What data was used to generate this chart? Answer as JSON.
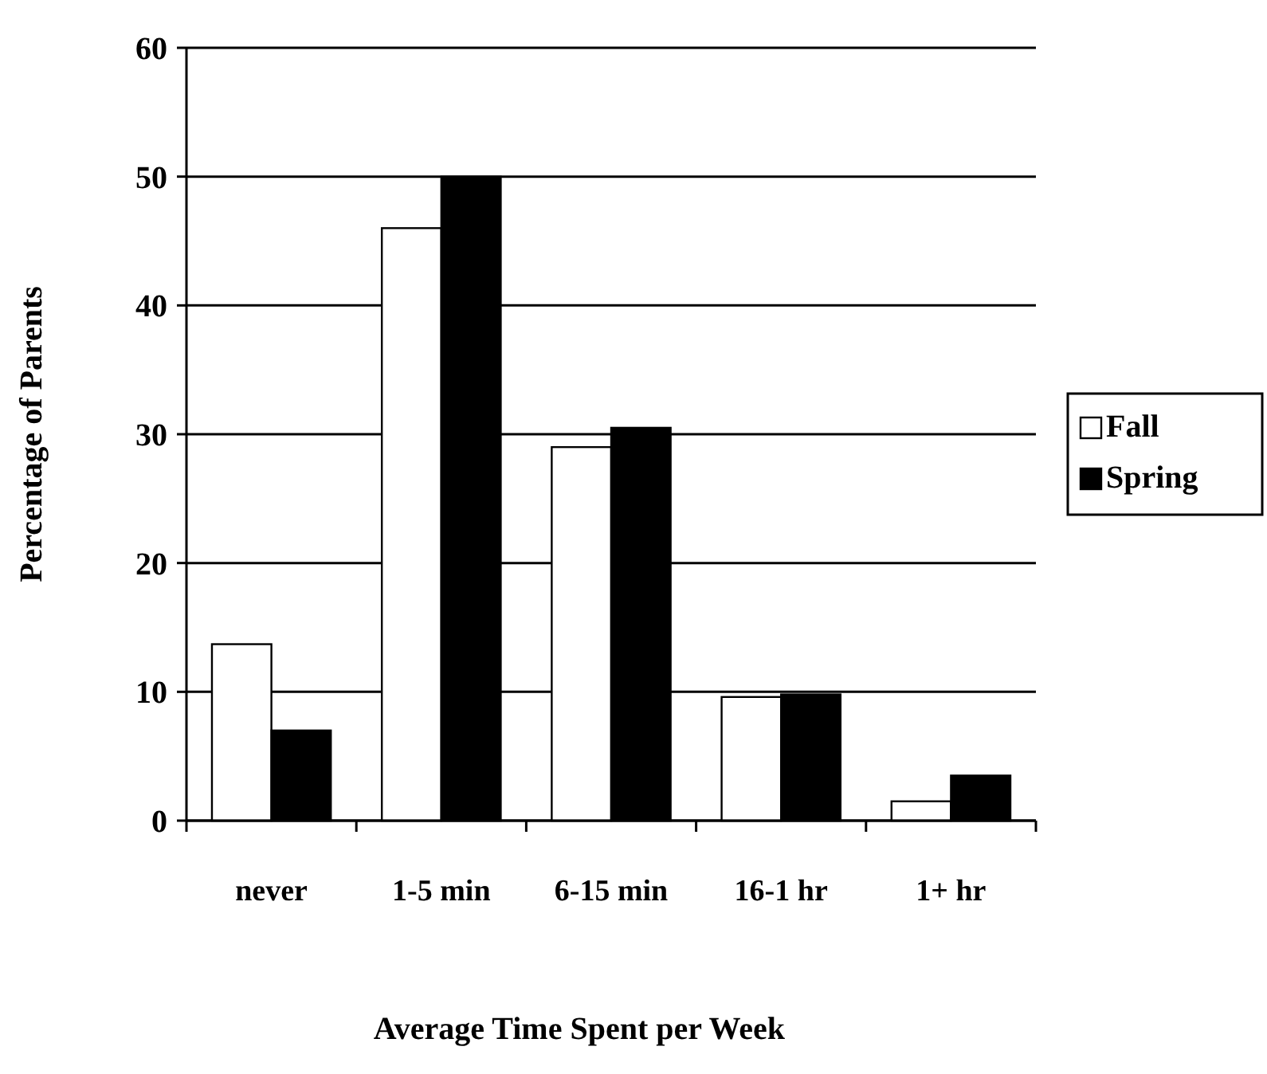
{
  "chart_data": {
    "type": "bar",
    "xlabel": "Average Time Spent per Week",
    "ylabel": "Percentage of Parents",
    "categories": [
      "never",
      "1-5 min",
      "6-15 min",
      "16-1 hr",
      "1+ hr"
    ],
    "series": [
      {
        "name": "Fall",
        "color": "#ffffff",
        "values": [
          13.7,
          46,
          29,
          9.6,
          1.5
        ]
      },
      {
        "name": "Spring",
        "color": "#000000",
        "values": [
          7,
          50,
          30.5,
          9.8,
          3.5
        ]
      }
    ],
    "ylim": [
      0,
      60
    ],
    "yticks": [
      0,
      10,
      20,
      30,
      40,
      50,
      60
    ],
    "grid": "y",
    "legend": "right"
  }
}
